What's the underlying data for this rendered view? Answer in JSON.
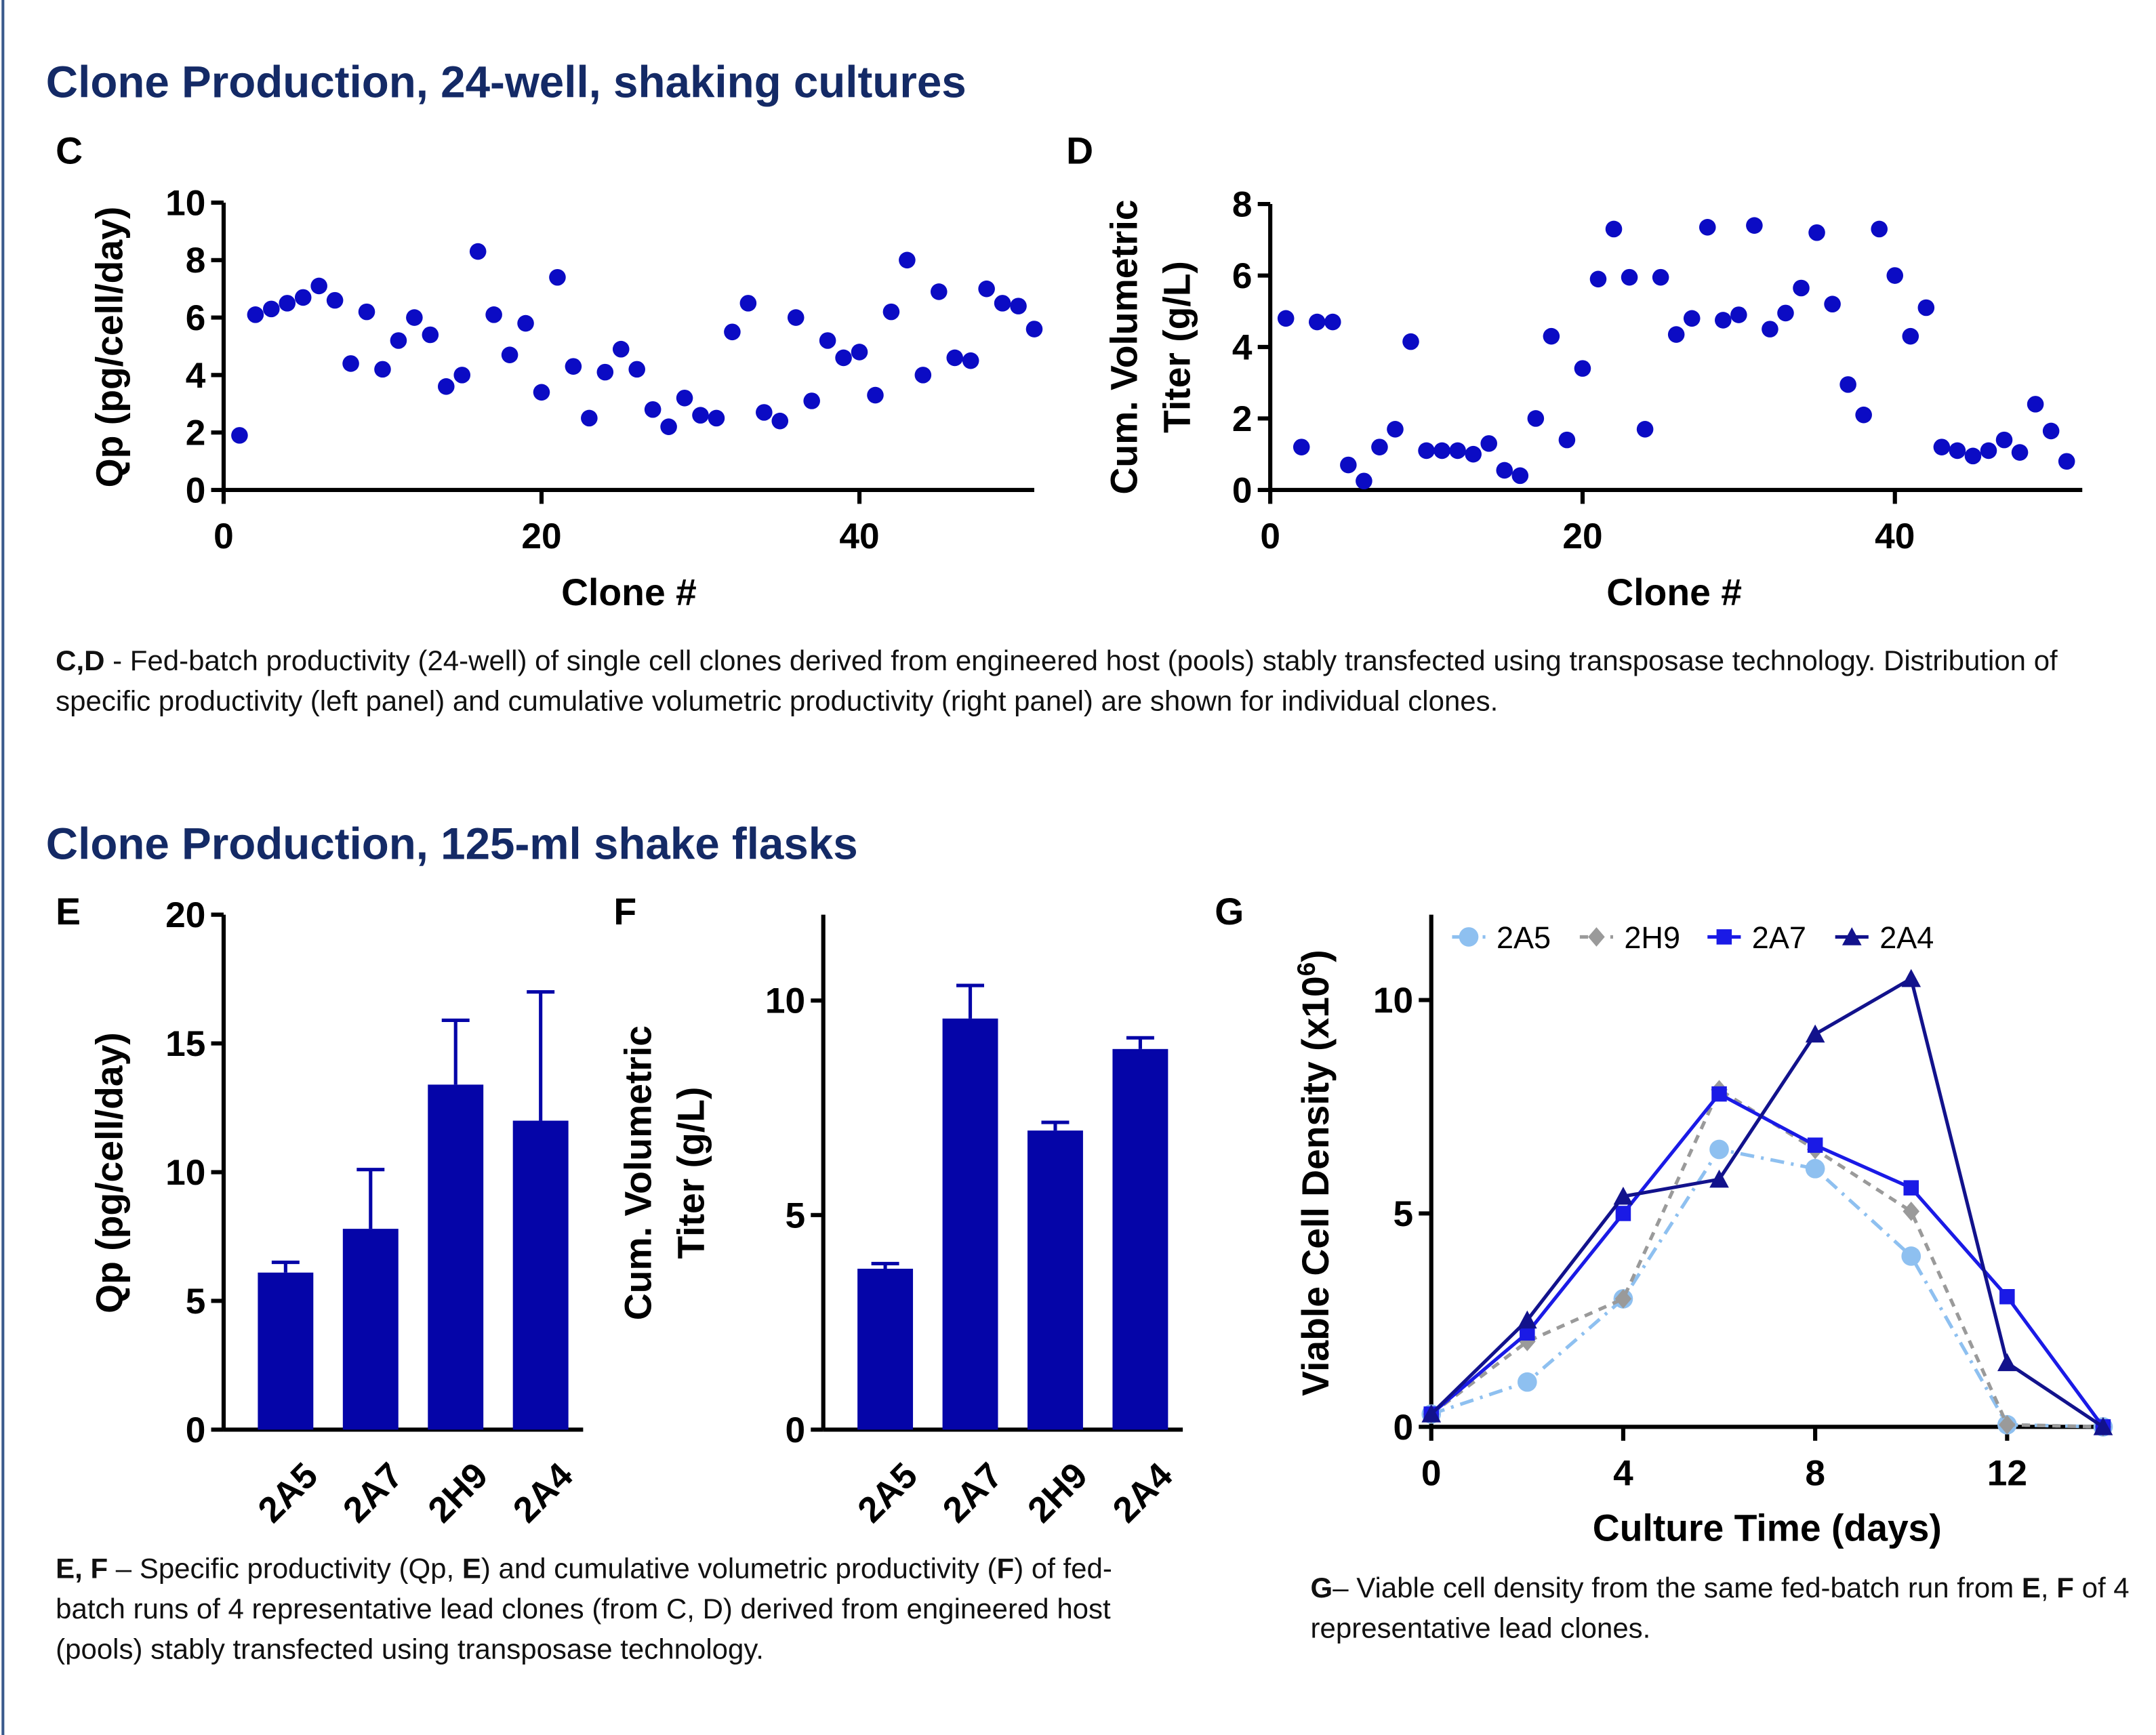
{
  "sections": [
    {
      "title": "Clone Production, 24-well, shaking cultures"
    },
    {
      "title": "Clone Production, 125-ml shake flasks"
    }
  ],
  "captions": [
    {
      "runs": [
        {
          "text": "C,D",
          "bold": true
        },
        {
          "text": " - Fed-batch productivity (24-well) of single cell clones derived from engineered host (pools) stably transfected using transposase technology. Distribution of specific productivity (left panel) and cumulative volumetric productivity (right panel) are shown for individual clones.",
          "bold": false
        }
      ]
    },
    {
      "runs": [
        {
          "text": "E, F",
          "bold": true
        },
        {
          "text": " – Specific productivity (Qp, ",
          "bold": false
        },
        {
          "text": "E",
          "bold": true
        },
        {
          "text": ") and cumulative volumetric productivity (",
          "bold": false
        },
        {
          "text": "F",
          "bold": true
        },
        {
          "text": ") of fed-batch runs of 4 representative lead clones (from C, D) derived from engineered host (pools) stably transfected using transposase technology.",
          "bold": false
        }
      ]
    },
    {
      "runs": [
        {
          "text": "G",
          "bold": true
        },
        {
          "text": "– Viable cell density from the same fed-batch run from ",
          "bold": false
        },
        {
          "text": "E",
          "bold": true
        },
        {
          "text": ", ",
          "bold": false
        },
        {
          "text": "F",
          "bold": true
        },
        {
          "text": " of 4 representative lead clones.",
          "bold": false
        }
      ]
    }
  ],
  "chart_data": [
    {
      "type": "scatter",
      "label": "C",
      "x_label": "Clone #",
      "y_label": [
        "Qp (pg/cell/day)"
      ],
      "color": "#0b0bc4",
      "x": [
        1,
        2,
        3,
        4,
        5,
        6,
        7,
        8,
        9,
        10,
        11,
        12,
        13,
        14,
        15,
        16,
        17,
        18,
        19,
        20,
        21,
        22,
        23,
        24,
        25,
        26,
        27,
        28,
        29,
        30,
        31,
        32,
        33,
        34,
        35,
        36,
        37,
        38,
        39,
        40,
        41,
        42,
        43,
        44,
        45,
        46,
        47,
        48,
        49,
        50,
        51
      ],
      "values": [
        1.9,
        6.1,
        6.3,
        6.5,
        6.7,
        7.1,
        6.6,
        4.4,
        6.2,
        4.2,
        5.2,
        6.0,
        5.4,
        3.6,
        4.0,
        8.3,
        6.1,
        4.7,
        5.8,
        3.4,
        7.4,
        4.3,
        2.5,
        4.1,
        4.9,
        4.2,
        2.8,
        2.2,
        3.2,
        2.6,
        2.5,
        5.5,
        6.5,
        2.7,
        2.4,
        6.0,
        3.1,
        5.2,
        4.6,
        4.8,
        3.3,
        6.2,
        8.0,
        4.0,
        6.9,
        4.6,
        4.5,
        7.0,
        6.5,
        6.4,
        5.6
      ],
      "xlim": [
        0,
        51
      ],
      "xticks": [
        0,
        20,
        40
      ],
      "ylim": [
        0,
        10
      ],
      "yticks": [
        0,
        2,
        4,
        6,
        8,
        10
      ]
    },
    {
      "type": "scatter",
      "label": "D",
      "x_label": "Clone #",
      "y_label": [
        "Cum. Volumetric",
        "Titer (g/L)"
      ],
      "color": "#0b0bc4",
      "x": [
        1,
        2,
        3,
        4,
        5,
        6,
        7,
        8,
        9,
        10,
        11,
        12,
        13,
        14,
        15,
        16,
        17,
        18,
        19,
        20,
        21,
        22,
        23,
        24,
        25,
        26,
        27,
        28,
        29,
        30,
        31,
        32,
        33,
        34,
        35,
        36,
        37,
        38,
        39,
        40,
        41,
        42,
        43,
        44,
        45,
        46,
        47,
        48,
        49,
        50,
        51
      ],
      "values": [
        4.8,
        1.2,
        4.7,
        4.7,
        0.7,
        0.25,
        1.2,
        1.7,
        4.15,
        1.1,
        1.1,
        1.1,
        1.0,
        1.3,
        0.55,
        0.4,
        2.0,
        4.3,
        1.4,
        3.4,
        5.9,
        7.3,
        5.95,
        1.7,
        5.95,
        4.35,
        4.8,
        7.35,
        4.75,
        4.9,
        7.4,
        4.5,
        4.95,
        5.65,
        7.2,
        5.2,
        2.95,
        2.1,
        7.3,
        6.0,
        4.3,
        5.1,
        1.2,
        1.1,
        0.95,
        1.1,
        1.4,
        1.05,
        2.4,
        1.65,
        0.8
      ],
      "xlim": [
        0,
        52
      ],
      "xticks": [
        0,
        20,
        40
      ],
      "ylim": [
        0,
        8
      ],
      "yticks": [
        0,
        2,
        4,
        6,
        8
      ]
    },
    {
      "type": "bar",
      "label": "E",
      "y_label": [
        "Qp (pg/cell/day)"
      ],
      "color": "#0505a8",
      "categories": [
        "2A5",
        "2A7",
        "2H9",
        "2A4"
      ],
      "values": [
        6.1,
        7.8,
        13.4,
        12.0
      ],
      "errors": [
        0.4,
        2.3,
        2.5,
        5.0
      ],
      "ylim": [
        0,
        20
      ],
      "yticks": [
        0,
        5,
        10,
        15,
        20
      ]
    },
    {
      "type": "bar",
      "label": "F",
      "y_label": [
        "Cum. Volumetric",
        "Titer (g/L)"
      ],
      "color": "#0505a8",
      "categories": [
        "2A5",
        "2A7",
        "2H9",
        "2A4"
      ],
      "values": [
        3.75,
        9.58,
        6.97,
        8.87
      ],
      "errors": [
        0.12,
        0.77,
        0.19,
        0.26
      ],
      "ylim": [
        0,
        12
      ],
      "yticks": [
        0,
        5,
        10
      ]
    },
    {
      "type": "line",
      "label": "G",
      "x_label": "Culture Time (days)",
      "y_label": [
        "Viable Cell Density (x10"
      ],
      "y_label_superscript": "6",
      "y_label_end": ")",
      "x": [
        0,
        2,
        4,
        6,
        8,
        10,
        12,
        14
      ],
      "series": [
        {
          "name": "2A5",
          "color": "#8ec0f0",
          "marker": "circle",
          "dash": "dash-dot",
          "values": [
            0.3,
            1.05,
            3.0,
            6.5,
            6.05,
            4.0,
            0.05,
            0.0
          ]
        },
        {
          "name": "2H9",
          "color": "#9a9a9a",
          "marker": "diamond",
          "dash": "dashed",
          "values": [
            0.3,
            2.0,
            3.0,
            7.9,
            6.5,
            5.05,
            0.05,
            0.0
          ]
        },
        {
          "name": "2A7",
          "color": "#1a1ae6",
          "marker": "square",
          "dash": "solid",
          "values": [
            0.3,
            2.2,
            5.0,
            7.8,
            6.6,
            5.6,
            3.05,
            0.0
          ]
        },
        {
          "name": "2A4",
          "color": "#12128c",
          "marker": "triangle",
          "dash": "solid",
          "values": [
            0.3,
            2.5,
            5.4,
            5.8,
            9.2,
            10.5,
            1.5,
            0.0
          ]
        }
      ],
      "xlim": [
        0,
        14
      ],
      "xticks": [
        0,
        4,
        8,
        12
      ],
      "ylim": [
        0,
        12
      ],
      "yticks": [
        0,
        5,
        10
      ],
      "legend": "top"
    }
  ]
}
